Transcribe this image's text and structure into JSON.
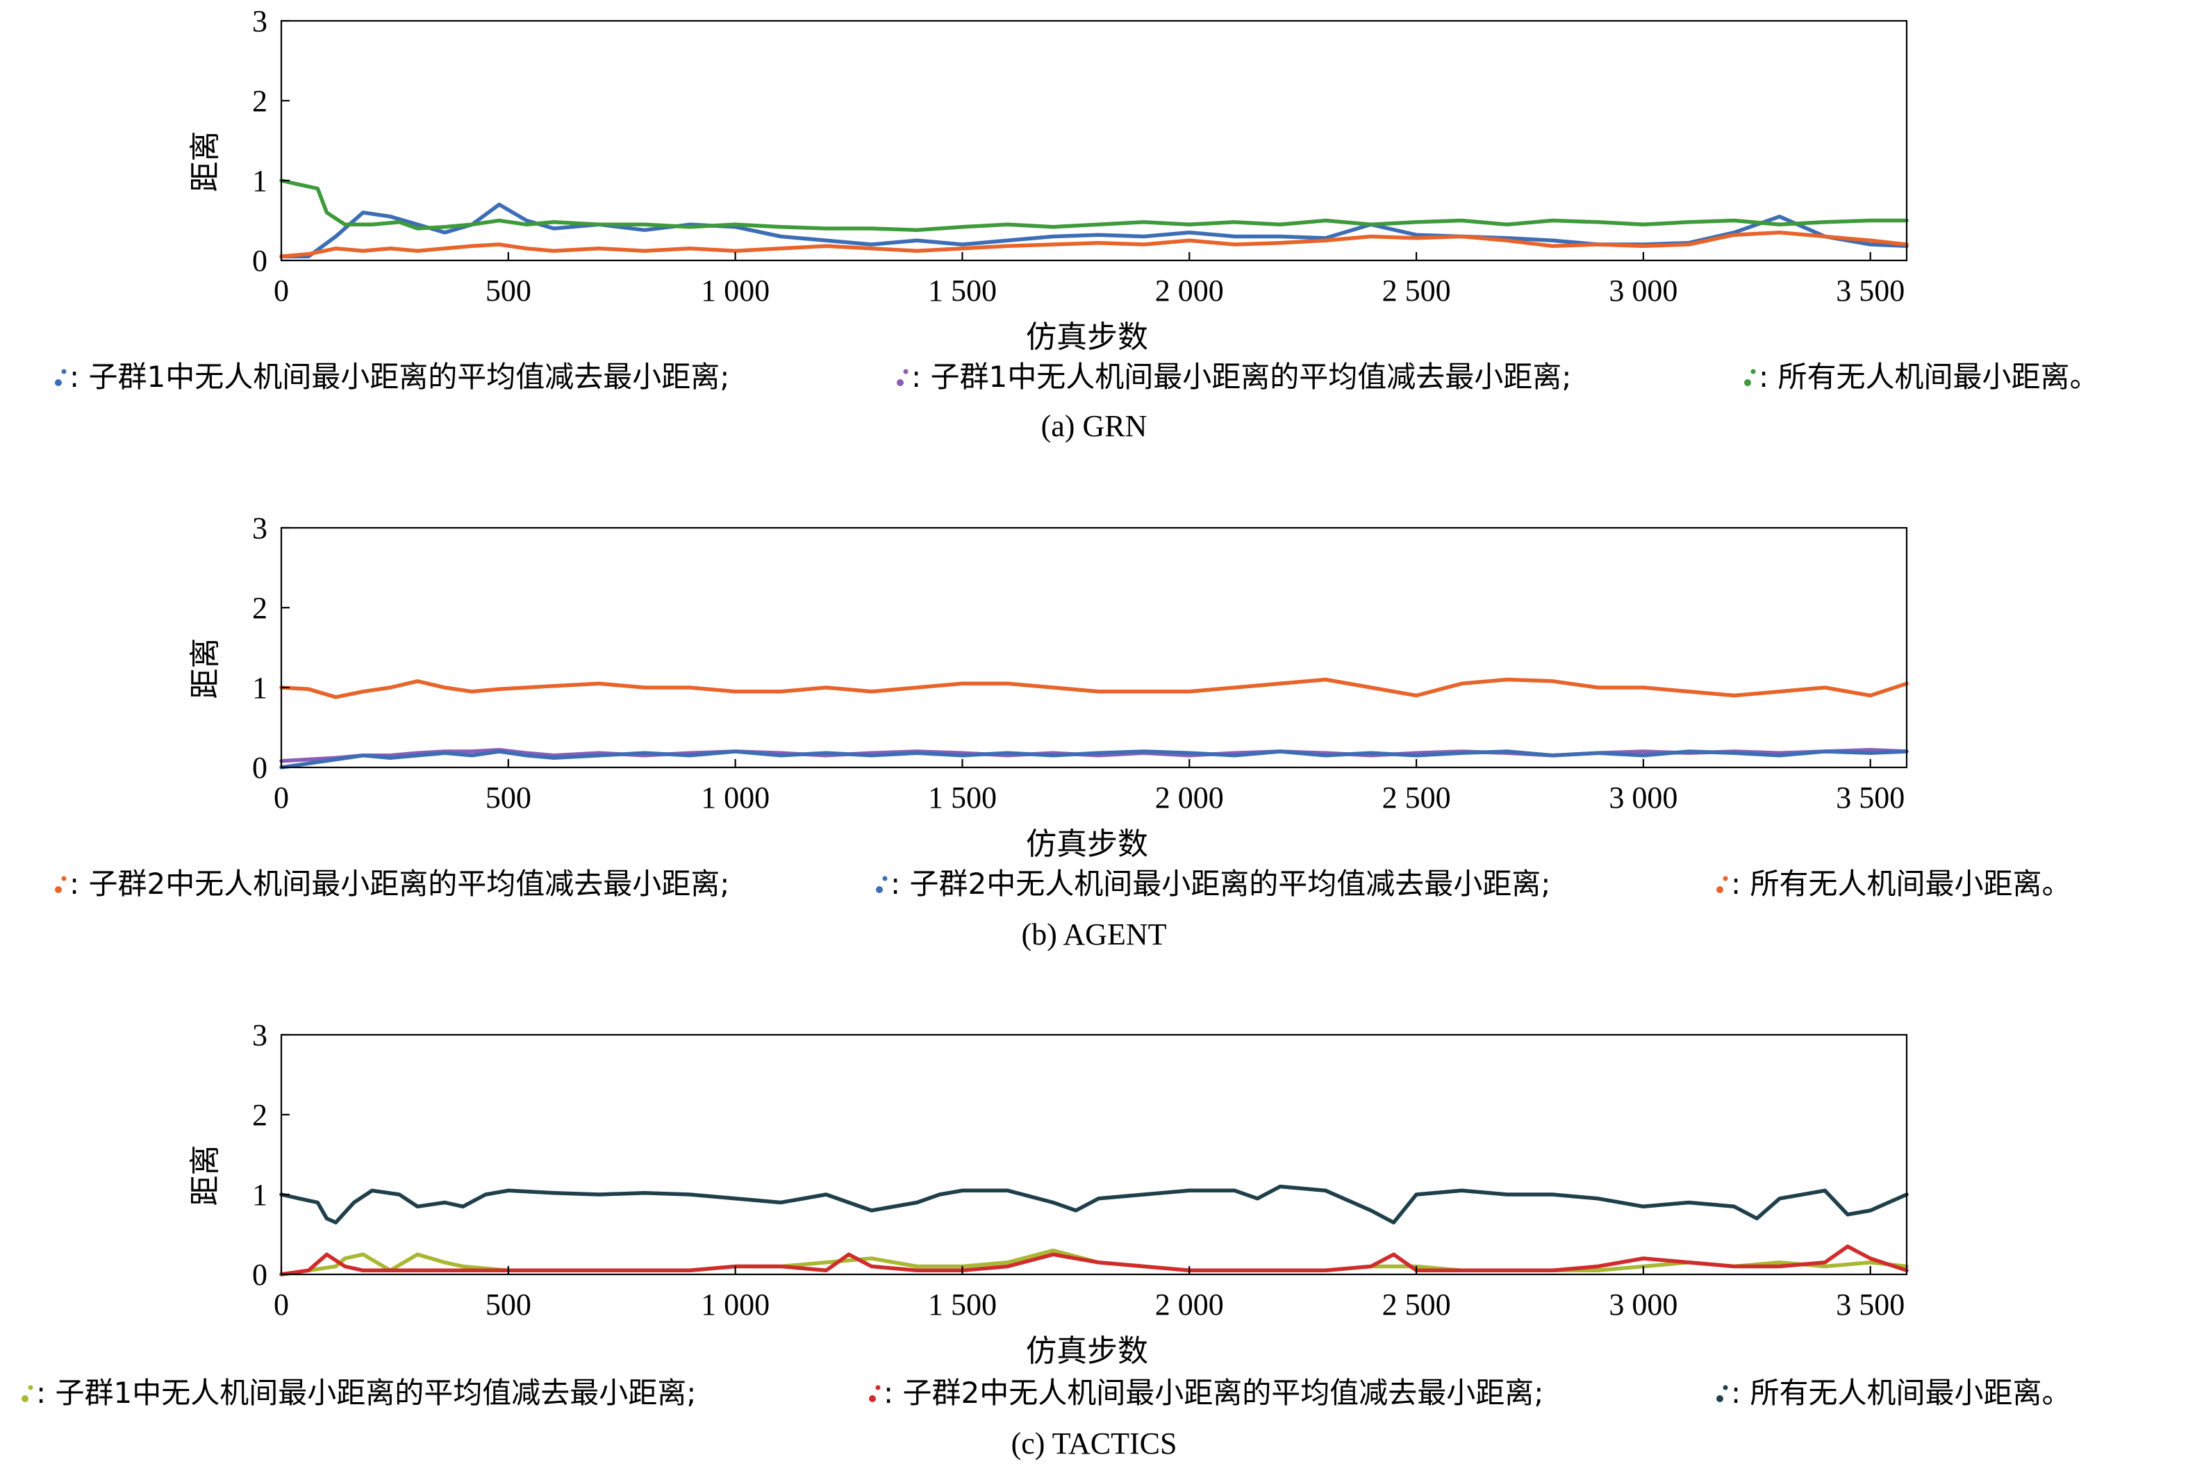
{
  "chart_data": [
    {
      "type": "line",
      "caption": "(a) GRN",
      "xlabel": "仿真步数",
      "ylabel": "距离",
      "xlim": [
        0,
        3580
      ],
      "ylim": [
        0,
        3
      ],
      "xticks": [
        0,
        500,
        1000,
        1500,
        2000,
        2500,
        3000,
        3500
      ],
      "xtick_labels": [
        "0",
        "500",
        "1 000",
        "1 500",
        "2 000",
        "2 500",
        "3 000",
        "3 500"
      ],
      "yticks": [
        0,
        1,
        2,
        3
      ],
      "ytick_labels": [
        "0",
        "1",
        "2",
        "3"
      ],
      "grid": false,
      "legend": [
        {
          "text": ": 子群1中无人机间最小距离的平均值减去最小距离;",
          "color": "#3d6db5"
        },
        {
          "text": ": 子群1中无人机间最小距离的平均值减去最小距离;",
          "color": "#8a5db8"
        },
        {
          "text": ": 所有无人机间最小距离。",
          "color": "#3e9a3a"
        }
      ],
      "series": [
        {
          "color": "#3d6db5",
          "x": [
            0,
            60,
            120,
            180,
            240,
            300,
            360,
            420,
            480,
            540,
            600,
            700,
            800,
            900,
            1000,
            1100,
            1200,
            1300,
            1400,
            1500,
            1600,
            1700,
            1800,
            1900,
            2000,
            2100,
            2200,
            2300,
            2400,
            2500,
            2600,
            2700,
            2800,
            2900,
            3000,
            3100,
            3200,
            3300,
            3400,
            3500,
            3580
          ],
          "y": [
            0.05,
            0.05,
            0.3,
            0.6,
            0.55,
            0.45,
            0.35,
            0.45,
            0.7,
            0.5,
            0.4,
            0.45,
            0.38,
            0.45,
            0.42,
            0.3,
            0.25,
            0.2,
            0.25,
            0.2,
            0.25,
            0.3,
            0.32,
            0.3,
            0.35,
            0.3,
            0.3,
            0.28,
            0.45,
            0.32,
            0.3,
            0.28,
            0.25,
            0.2,
            0.2,
            0.22,
            0.35,
            0.55,
            0.3,
            0.2,
            0.18
          ]
        },
        {
          "color": "#e8642a",
          "x": [
            0,
            60,
            120,
            180,
            240,
            300,
            360,
            420,
            480,
            540,
            600,
            700,
            800,
            900,
            1000,
            1100,
            1200,
            1300,
            1400,
            1500,
            1600,
            1700,
            1800,
            1900,
            2000,
            2100,
            2200,
            2300,
            2400,
            2500,
            2600,
            2700,
            2800,
            2900,
            3000,
            3100,
            3200,
            3300,
            3400,
            3500,
            3580
          ],
          "y": [
            0.05,
            0.08,
            0.15,
            0.12,
            0.15,
            0.12,
            0.15,
            0.18,
            0.2,
            0.15,
            0.12,
            0.15,
            0.12,
            0.15,
            0.12,
            0.15,
            0.18,
            0.15,
            0.12,
            0.15,
            0.18,
            0.2,
            0.22,
            0.2,
            0.25,
            0.2,
            0.22,
            0.25,
            0.3,
            0.28,
            0.3,
            0.25,
            0.18,
            0.2,
            0.18,
            0.2,
            0.32,
            0.35,
            0.3,
            0.25,
            0.2
          ]
        },
        {
          "color": "#3e9a3a",
          "x": [
            0,
            40,
            80,
            100,
            140,
            200,
            260,
            300,
            360,
            420,
            480,
            540,
            600,
            700,
            800,
            900,
            1000,
            1100,
            1200,
            1300,
            1400,
            1500,
            1600,
            1700,
            1800,
            1900,
            2000,
            2100,
            2200,
            2300,
            2400,
            2500,
            2600,
            2700,
            2800,
            2900,
            3000,
            3100,
            3200,
            3300,
            3400,
            3500,
            3580
          ],
          "y": [
            1.0,
            0.95,
            0.9,
            0.6,
            0.45,
            0.45,
            0.48,
            0.4,
            0.42,
            0.45,
            0.5,
            0.45,
            0.48,
            0.45,
            0.45,
            0.42,
            0.45,
            0.42,
            0.4,
            0.4,
            0.38,
            0.42,
            0.45,
            0.42,
            0.45,
            0.48,
            0.45,
            0.48,
            0.45,
            0.5,
            0.45,
            0.48,
            0.5,
            0.45,
            0.5,
            0.48,
            0.45,
            0.48,
            0.5,
            0.45,
            0.48,
            0.5,
            0.5
          ]
        }
      ]
    },
    {
      "type": "line",
      "caption": "(b) AGENT",
      "xlabel": "仿真步数",
      "ylabel": "距离",
      "xlim": [
        0,
        3580
      ],
      "ylim": [
        0,
        3
      ],
      "xticks": [
        0,
        500,
        1000,
        1500,
        2000,
        2500,
        3000,
        3500
      ],
      "xtick_labels": [
        "0",
        "500",
        "1 000",
        "1 500",
        "2 000",
        "2 500",
        "3 000",
        "3 500"
      ],
      "yticks": [
        0,
        1,
        2,
        3
      ],
      "ytick_labels": [
        "0",
        "1",
        "2",
        "3"
      ],
      "grid": false,
      "legend": [
        {
          "text": ": 子群2中无人机间最小距离的平均值减去最小距离;",
          "color": "#e8642a"
        },
        {
          "text": ": 子群2中无人机间最小距离的平均值减去最小距离;",
          "color": "#3d6db5"
        },
        {
          "text": ": 所有无人机间最小距离。",
          "color": "#e8642a"
        }
      ],
      "series": [
        {
          "color": "#e8642a",
          "x": [
            0,
            60,
            120,
            180,
            240,
            300,
            360,
            420,
            480,
            540,
            600,
            700,
            800,
            900,
            1000,
            1100,
            1200,
            1300,
            1400,
            1500,
            1600,
            1700,
            1800,
            1900,
            2000,
            2100,
            2200,
            2300,
            2400,
            2500,
            2600,
            2700,
            2800,
            2900,
            3000,
            3100,
            3200,
            3300,
            3400,
            3500,
            3580
          ],
          "y": [
            1.0,
            0.98,
            0.88,
            0.95,
            1.0,
            1.08,
            1.0,
            0.95,
            0.98,
            1.0,
            1.02,
            1.05,
            1.0,
            1.0,
            0.95,
            0.95,
            1.0,
            0.95,
            1.0,
            1.05,
            1.05,
            1.0,
            0.95,
            0.95,
            0.95,
            1.0,
            1.05,
            1.1,
            1.0,
            0.9,
            1.05,
            1.1,
            1.08,
            1.0,
            1.0,
            0.95,
            0.9,
            0.95,
            1.0,
            0.9,
            1.05
          ]
        },
        {
          "color": "#8a5db8",
          "x": [
            0,
            60,
            120,
            180,
            240,
            300,
            360,
            420,
            480,
            540,
            600,
            700,
            800,
            900,
            1000,
            1100,
            1200,
            1300,
            1400,
            1500,
            1600,
            1700,
            1800,
            1900,
            2000,
            2100,
            2200,
            2300,
            2400,
            2500,
            2600,
            2700,
            2800,
            2900,
            3000,
            3100,
            3200,
            3300,
            3400,
            3500,
            3580
          ],
          "y": [
            0.08,
            0.1,
            0.12,
            0.15,
            0.15,
            0.18,
            0.2,
            0.2,
            0.22,
            0.18,
            0.15,
            0.18,
            0.15,
            0.18,
            0.2,
            0.18,
            0.15,
            0.18,
            0.2,
            0.18,
            0.15,
            0.18,
            0.15,
            0.18,
            0.15,
            0.18,
            0.2,
            0.18,
            0.15,
            0.18,
            0.2,
            0.18,
            0.15,
            0.18,
            0.2,
            0.18,
            0.2,
            0.18,
            0.2,
            0.22,
            0.2
          ]
        },
        {
          "color": "#3d6db5",
          "x": [
            0,
            60,
            120,
            180,
            240,
            300,
            360,
            420,
            480,
            540,
            600,
            700,
            800,
            900,
            1000,
            1100,
            1200,
            1300,
            1400,
            1500,
            1600,
            1700,
            1800,
            1900,
            2000,
            2100,
            2200,
            2300,
            2400,
            2500,
            2600,
            2700,
            2800,
            2900,
            3000,
            3100,
            3200,
            3300,
            3400,
            3500,
            3580
          ],
          "y": [
            0.0,
            0.05,
            0.1,
            0.15,
            0.12,
            0.15,
            0.18,
            0.15,
            0.2,
            0.15,
            0.12,
            0.15,
            0.18,
            0.15,
            0.2,
            0.15,
            0.18,
            0.15,
            0.18,
            0.15,
            0.18,
            0.15,
            0.18,
            0.2,
            0.18,
            0.15,
            0.2,
            0.15,
            0.18,
            0.15,
            0.18,
            0.2,
            0.15,
            0.18,
            0.15,
            0.2,
            0.18,
            0.15,
            0.2,
            0.18,
            0.2
          ]
        }
      ]
    },
    {
      "type": "line",
      "caption": "(c) TACTICS",
      "xlabel": "仿真步数",
      "ylabel": "距离",
      "xlim": [
        0,
        3580
      ],
      "ylim": [
        0,
        3
      ],
      "xticks": [
        0,
        500,
        1000,
        1500,
        2000,
        2500,
        3000,
        3500
      ],
      "xtick_labels": [
        "0",
        "500",
        "1 000",
        "1 500",
        "2 000",
        "2 500",
        "3 000",
        "3 500"
      ],
      "yticks": [
        0,
        1,
        2,
        3
      ],
      "ytick_labels": [
        "0",
        "1",
        "2",
        "3"
      ],
      "grid": false,
      "legend": [
        {
          "text": ": 子群1中无人机间最小距离的平均值减去最小距离;",
          "color": "#a8b832"
        },
        {
          "text": ": 子群2中无人机间最小距离的平均值减去最小距离;",
          "color": "#d02c2c"
        },
        {
          "text": ": 所有无人机间最小距离。",
          "color": "#1f3f4a"
        }
      ],
      "series": [
        {
          "color": "#1f3f4a",
          "x": [
            0,
            40,
            80,
            100,
            120,
            160,
            200,
            260,
            300,
            360,
            400,
            450,
            500,
            600,
            700,
            800,
            900,
            1000,
            1100,
            1200,
            1300,
            1400,
            1450,
            1500,
            1600,
            1700,
            1750,
            1800,
            1900,
            2000,
            2100,
            2150,
            2200,
            2300,
            2400,
            2450,
            2500,
            2600,
            2700,
            2800,
            2900,
            3000,
            3100,
            3200,
            3250,
            3300,
            3400,
            3450,
            3500,
            3580
          ],
          "y": [
            1.0,
            0.95,
            0.9,
            0.7,
            0.65,
            0.9,
            1.05,
            1.0,
            0.85,
            0.9,
            0.85,
            1.0,
            1.05,
            1.02,
            1.0,
            1.02,
            1.0,
            0.95,
            0.9,
            1.0,
            0.8,
            0.9,
            1.0,
            1.05,
            1.05,
            0.9,
            0.8,
            0.95,
            1.0,
            1.05,
            1.05,
            0.95,
            1.1,
            1.05,
            0.8,
            0.65,
            1.0,
            1.05,
            1.0,
            1.0,
            0.95,
            0.85,
            0.9,
            0.85,
            0.7,
            0.95,
            1.05,
            0.75,
            0.8,
            1.0
          ]
        },
        {
          "color": "#a8b832",
          "x": [
            0,
            60,
            120,
            140,
            180,
            240,
            300,
            360,
            400,
            500,
            600,
            700,
            800,
            900,
            1000,
            1100,
            1200,
            1300,
            1400,
            1500,
            1600,
            1700,
            1800,
            1900,
            2000,
            2100,
            2200,
            2300,
            2400,
            2500,
            2600,
            2700,
            2800,
            2900,
            3000,
            3100,
            3200,
            3300,
            3400,
            3500,
            3580
          ],
          "y": [
            0.0,
            0.05,
            0.1,
            0.2,
            0.25,
            0.05,
            0.25,
            0.15,
            0.1,
            0.05,
            0.05,
            0.05,
            0.05,
            0.05,
            0.1,
            0.1,
            0.15,
            0.2,
            0.1,
            0.1,
            0.15,
            0.3,
            0.15,
            0.1,
            0.05,
            0.05,
            0.05,
            0.05,
            0.1,
            0.1,
            0.05,
            0.05,
            0.05,
            0.05,
            0.1,
            0.15,
            0.1,
            0.15,
            0.1,
            0.15,
            0.1
          ]
        },
        {
          "color": "#d02c2c",
          "x": [
            0,
            60,
            100,
            140,
            180,
            240,
            300,
            360,
            400,
            500,
            600,
            700,
            800,
            900,
            1000,
            1100,
            1200,
            1250,
            1300,
            1400,
            1500,
            1600,
            1700,
            1800,
            1900,
            2000,
            2100,
            2200,
            2300,
            2400,
            2450,
            2500,
            2600,
            2700,
            2800,
            2900,
            3000,
            3100,
            3200,
            3300,
            3400,
            3450,
            3500,
            3580
          ],
          "y": [
            0.0,
            0.05,
            0.25,
            0.1,
            0.05,
            0.05,
            0.05,
            0.05,
            0.05,
            0.05,
            0.05,
            0.05,
            0.05,
            0.05,
            0.1,
            0.1,
            0.05,
            0.25,
            0.1,
            0.05,
            0.05,
            0.1,
            0.25,
            0.15,
            0.1,
            0.05,
            0.05,
            0.05,
            0.05,
            0.1,
            0.25,
            0.05,
            0.05,
            0.05,
            0.05,
            0.1,
            0.2,
            0.15,
            0.1,
            0.1,
            0.15,
            0.35,
            0.2,
            0.05
          ]
        }
      ]
    }
  ]
}
